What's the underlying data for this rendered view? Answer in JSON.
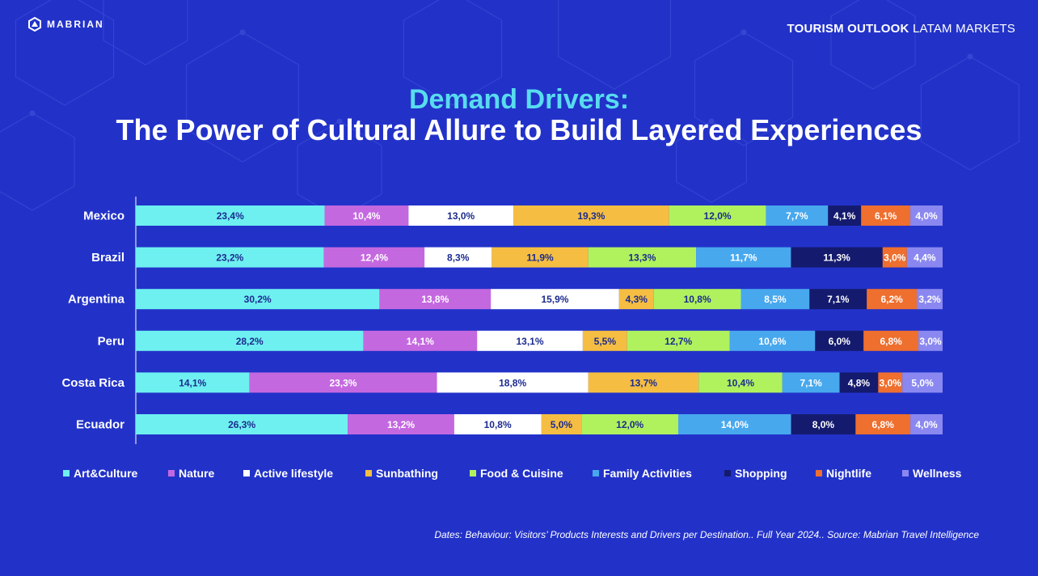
{
  "header": {
    "logo_text": "MABRIAN",
    "right_bold": "TOURISM OUTLOOK",
    "right_regular": "LATAM MARKETS"
  },
  "title_line1": "Demand Drivers:",
  "title_line2": "The Power of Cultural Allure to Build Layered Experiences",
  "footnote": "Dates: Behaviour: Visitors’ Products Interests and Drivers per Destination.. Full Year 2024.. Source: Mabrian Travel Intelligence",
  "colors": {
    "background": "#2232c9",
    "accent": "#58dcef"
  },
  "chart_data": {
    "type": "bar",
    "orientation": "horizontal",
    "stacked": true,
    "categories": [
      "Mexico",
      "Brazil",
      "Argentina",
      "Peru",
      "Costa Rica",
      "Ecuador"
    ],
    "series": [
      {
        "name": "Art&Culture",
        "color": "#6ef0f0",
        "values": [
          23.4,
          23.2,
          30.2,
          28.2,
          14.1,
          26.3
        ],
        "labels": [
          "23,4%",
          "23,2%",
          "30,2%",
          "28,2%",
          "14,1%",
          "26,3%"
        ]
      },
      {
        "name": "Nature",
        "color": "#c468e0",
        "values": [
          10.4,
          12.4,
          13.8,
          14.1,
          23.3,
          13.2
        ],
        "labels": [
          "10,4%",
          "12,4%",
          "13,8%",
          "14,1%",
          "23,3%",
          "13,2%"
        ]
      },
      {
        "name": "Active lifestyle",
        "color": "#ffffff",
        "values": [
          13.0,
          8.3,
          15.9,
          13.1,
          18.8,
          10.8
        ],
        "labels": [
          "13,0%",
          "8,3%",
          "15,9%",
          "13,1%",
          "18,8%",
          "10,8%"
        ]
      },
      {
        "name": "Sunbathing",
        "color": "#f5be42",
        "values": [
          19.3,
          11.9,
          4.3,
          5.5,
          13.7,
          5.0
        ],
        "labels": [
          "19,3%",
          "11,9%",
          "4,3%",
          "5,5%",
          "13,7%",
          "5,0%"
        ]
      },
      {
        "name": "Food & Cuisine",
        "color": "#b0f25e",
        "values": [
          12.0,
          13.3,
          10.8,
          12.7,
          10.4,
          12.0
        ],
        "labels": [
          "12,0%",
          "13,3%",
          "10,8%",
          "12,7%",
          "10,4%",
          "12,0%"
        ]
      },
      {
        "name": "Family Activities",
        "color": "#48a8ee",
        "values": [
          7.7,
          11.7,
          8.5,
          10.6,
          7.1,
          14.0
        ],
        "labels": [
          "7,7%",
          "11,7%",
          "8,5%",
          "10,6%",
          "7,1%",
          "14,0%"
        ]
      },
      {
        "name": "Shopping",
        "color": "#141b6e",
        "values": [
          4.1,
          11.3,
          7.1,
          6.0,
          4.8,
          8.0
        ],
        "labels": [
          "4,1%",
          "11,3%",
          "7,1%",
          "6,0%",
          "4,8%",
          "8,0%"
        ]
      },
      {
        "name": "Nightlife",
        "color": "#ee6f2e",
        "values": [
          6.1,
          3.0,
          6.2,
          6.8,
          3.0,
          6.8
        ],
        "labels": [
          "6,1%",
          "3,0%",
          "6,2%",
          "6,8%",
          "3,0%",
          "6,8%"
        ]
      },
      {
        "name": "Wellness",
        "color": "#8a88f0",
        "values": [
          4.0,
          4.4,
          3.2,
          3.0,
          5.0,
          4.0
        ],
        "labels": [
          "4,0%",
          "4,4%",
          "3,2%",
          "3,0%",
          "5,0%",
          "4,0%"
        ]
      }
    ],
    "xlim": [
      0,
      100
    ],
    "legend": "bottom"
  }
}
